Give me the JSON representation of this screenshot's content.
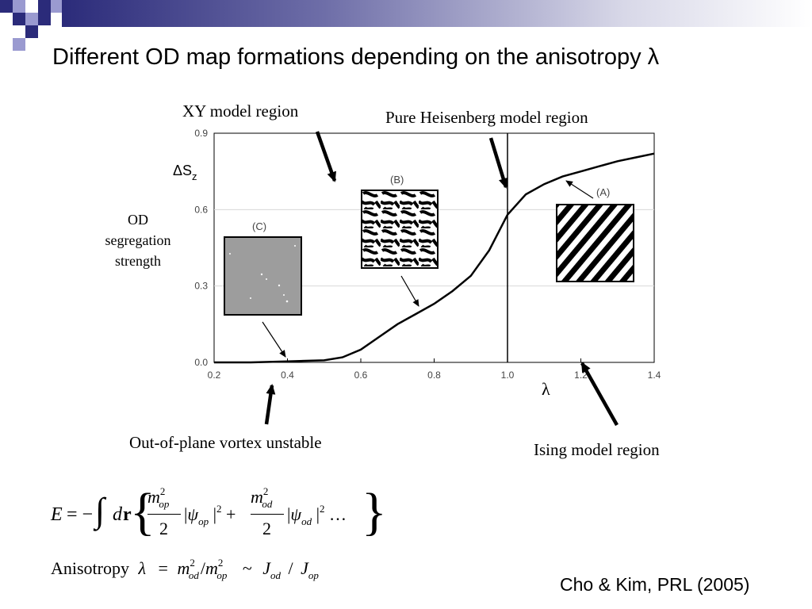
{
  "title": "Different OD map formations depending on the anisotropy λ",
  "regions": {
    "xy": "XY model region",
    "heisenberg": "Pure Heisenberg model region",
    "vortex": "Out-of-plane vortex unstable",
    "ising": "Ising model region"
  },
  "od_label": [
    "OD",
    "segregation",
    "strength"
  ],
  "citation": "Cho & Kim, PRL (2005)",
  "chart_data": {
    "type": "line",
    "ylabel": "ΔSz",
    "xlabel": "λ",
    "xlim": [
      0.2,
      1.4
    ],
    "ylim": [
      0.0,
      0.9
    ],
    "xticks": [
      "0.2",
      "0.4",
      "0.6",
      "0.8",
      "1.0",
      "1.2",
      "1.4"
    ],
    "yticks": [
      "0.0",
      "0.3",
      "0.6",
      "0.9"
    ],
    "vline_x": 1.0,
    "x": [
      0.2,
      0.3,
      0.4,
      0.5,
      0.55,
      0.6,
      0.65,
      0.7,
      0.75,
      0.8,
      0.85,
      0.9,
      0.95,
      1.0,
      1.05,
      1.1,
      1.15,
      1.2,
      1.25,
      1.3,
      1.35,
      1.4
    ],
    "values": [
      0.0,
      0.0,
      0.004,
      0.008,
      0.02,
      0.05,
      0.1,
      0.15,
      0.19,
      0.23,
      0.28,
      0.34,
      0.44,
      0.58,
      0.66,
      0.7,
      0.73,
      0.75,
      0.77,
      0.79,
      0.805,
      0.82
    ],
    "insets": [
      {
        "label": "(A)"
      },
      {
        "label": "(B)"
      },
      {
        "label": "(C)"
      }
    ]
  },
  "formula": {
    "energy": "E = −∫ dr { (m_op²/2) |ψ_op|² + (m_od²/2) |ψ_od|² … }",
    "anisotropy_word": "Anisotropy",
    "anisotropy": "λ = m_od²/m_op² ~ J_od / J_op"
  }
}
